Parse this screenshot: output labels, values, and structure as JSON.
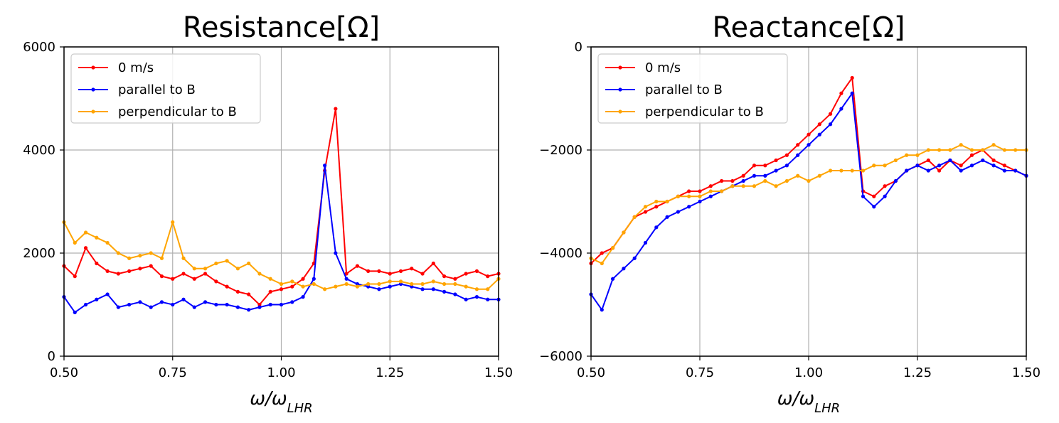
{
  "chart_data": [
    {
      "type": "line",
      "title": "Resistance[Ω]",
      "xlabel_main": "ω/ω",
      "xlabel_sub": "LHR",
      "ylabel": "",
      "xlim": [
        0.5,
        1.5
      ],
      "ylim": [
        0,
        6000
      ],
      "xticks": [
        0.5,
        0.75,
        1.0,
        1.25,
        1.5
      ],
      "xtick_labels": [
        "0.50",
        "0.75",
        "1.00",
        "1.25",
        "1.50"
      ],
      "yticks": [
        0,
        2000,
        4000,
        6000
      ],
      "ytick_labels": [
        "0",
        "2000",
        "4000",
        "6000"
      ],
      "grid": true,
      "legend": "top-left",
      "x": [
        0.5,
        0.525,
        0.55,
        0.575,
        0.6,
        0.625,
        0.65,
        0.675,
        0.7,
        0.725,
        0.75,
        0.775,
        0.8,
        0.825,
        0.85,
        0.875,
        0.9,
        0.925,
        0.95,
        0.975,
        1.0,
        1.025,
        1.05,
        1.075,
        1.1,
        1.125,
        1.15,
        1.175,
        1.2,
        1.225,
        1.25,
        1.275,
        1.3,
        1.325,
        1.35,
        1.375,
        1.4,
        1.425,
        1.45,
        1.475,
        1.5
      ],
      "series": [
        {
          "name": "0 m/s",
          "color": "#ff0000",
          "values": [
            1750,
            1550,
            2100,
            1800,
            1650,
            1600,
            1650,
            1700,
            1750,
            1550,
            1500,
            1600,
            1500,
            1600,
            1450,
            1350,
            1250,
            1200,
            1000,
            1250,
            1300,
            1350,
            1500,
            1800,
            3600,
            4800,
            1600,
            1750,
            1650,
            1650,
            1600,
            1650,
            1700,
            1600,
            1800,
            1550,
            1500,
            1600,
            1650,
            1550,
            1600
          ]
        },
        {
          "name": "parallel to B",
          "color": "#0000ff",
          "values": [
            1150,
            850,
            1000,
            1100,
            1200,
            950,
            1000,
            1050,
            950,
            1050,
            1000,
            1100,
            950,
            1050,
            1000,
            1000,
            950,
            900,
            950,
            1000,
            1000,
            1050,
            1150,
            1500,
            3700,
            2000,
            1500,
            1400,
            1350,
            1300,
            1350,
            1400,
            1350,
            1300,
            1300,
            1250,
            1200,
            1100,
            1150,
            1100,
            1100
          ]
        },
        {
          "name": "perpendicular to B",
          "color": "#ffa500",
          "values": [
            2600,
            2200,
            2400,
            2300,
            2200,
            2000,
            1900,
            1950,
            2000,
            1900,
            2600,
            1900,
            1700,
            1700,
            1800,
            1850,
            1700,
            1800,
            1600,
            1500,
            1400,
            1450,
            1350,
            1400,
            1300,
            1350,
            1400,
            1350,
            1400,
            1400,
            1450,
            1450,
            1400,
            1400,
            1450,
            1400,
            1400,
            1350,
            1300,
            1300,
            1500
          ]
        }
      ]
    },
    {
      "type": "line",
      "title": "Reactance[Ω]",
      "xlabel_main": "ω/ω",
      "xlabel_sub": "LHR",
      "ylabel": "",
      "xlim": [
        0.5,
        1.5
      ],
      "ylim": [
        -6000,
        0
      ],
      "xticks": [
        0.5,
        0.75,
        1.0,
        1.25,
        1.5
      ],
      "xtick_labels": [
        "0.50",
        "0.75",
        "1.00",
        "1.25",
        "1.50"
      ],
      "yticks": [
        -6000,
        -4000,
        -2000,
        0
      ],
      "ytick_labels": [
        "−6000",
        "−4000",
        "−2000",
        "0"
      ],
      "grid": true,
      "legend": "top-left",
      "x": [
        0.5,
        0.525,
        0.55,
        0.575,
        0.6,
        0.625,
        0.65,
        0.675,
        0.7,
        0.725,
        0.75,
        0.775,
        0.8,
        0.825,
        0.85,
        0.875,
        0.9,
        0.925,
        0.95,
        0.975,
        1.0,
        1.025,
        1.05,
        1.075,
        1.1,
        1.125,
        1.15,
        1.175,
        1.2,
        1.225,
        1.25,
        1.275,
        1.3,
        1.325,
        1.35,
        1.375,
        1.4,
        1.425,
        1.45,
        1.475,
        1.5
      ],
      "series": [
        {
          "name": "0 m/s",
          "color": "#ff0000",
          "values": [
            -4200,
            -4000,
            -3900,
            -3600,
            -3300,
            -3200,
            -3100,
            -3000,
            -2900,
            -2800,
            -2800,
            -2700,
            -2600,
            -2600,
            -2500,
            -2300,
            -2300,
            -2200,
            -2100,
            -1900,
            -1700,
            -1500,
            -1300,
            -900,
            -600,
            -2800,
            -2900,
            -2700,
            -2600,
            -2400,
            -2300,
            -2200,
            -2400,
            -2200,
            -2300,
            -2100,
            -2000,
            -2200,
            -2300,
            -2400,
            -2500
          ]
        },
        {
          "name": "parallel to B",
          "color": "#0000ff",
          "values": [
            -4800,
            -5100,
            -4500,
            -4300,
            -4100,
            -3800,
            -3500,
            -3300,
            -3200,
            -3100,
            -3000,
            -2900,
            -2800,
            -2700,
            -2600,
            -2500,
            -2500,
            -2400,
            -2300,
            -2100,
            -1900,
            -1700,
            -1500,
            -1200,
            -900,
            -2900,
            -3100,
            -2900,
            -2600,
            -2400,
            -2300,
            -2400,
            -2300,
            -2200,
            -2400,
            -2300,
            -2200,
            -2300,
            -2400,
            -2400,
            -2500
          ]
        },
        {
          "name": "perpendicular to B",
          "color": "#ffa500",
          "values": [
            -4100,
            -4200,
            -3900,
            -3600,
            -3300,
            -3100,
            -3000,
            -3000,
            -2900,
            -2900,
            -2900,
            -2800,
            -2800,
            -2700,
            -2700,
            -2700,
            -2600,
            -2700,
            -2600,
            -2500,
            -2600,
            -2500,
            -2400,
            -2400,
            -2400,
            -2400,
            -2300,
            -2300,
            -2200,
            -2100,
            -2100,
            -2000,
            -2000,
            -2000,
            -1900,
            -2000,
            -2000,
            -1900,
            -2000,
            -2000,
            -2000
          ]
        }
      ]
    }
  ]
}
